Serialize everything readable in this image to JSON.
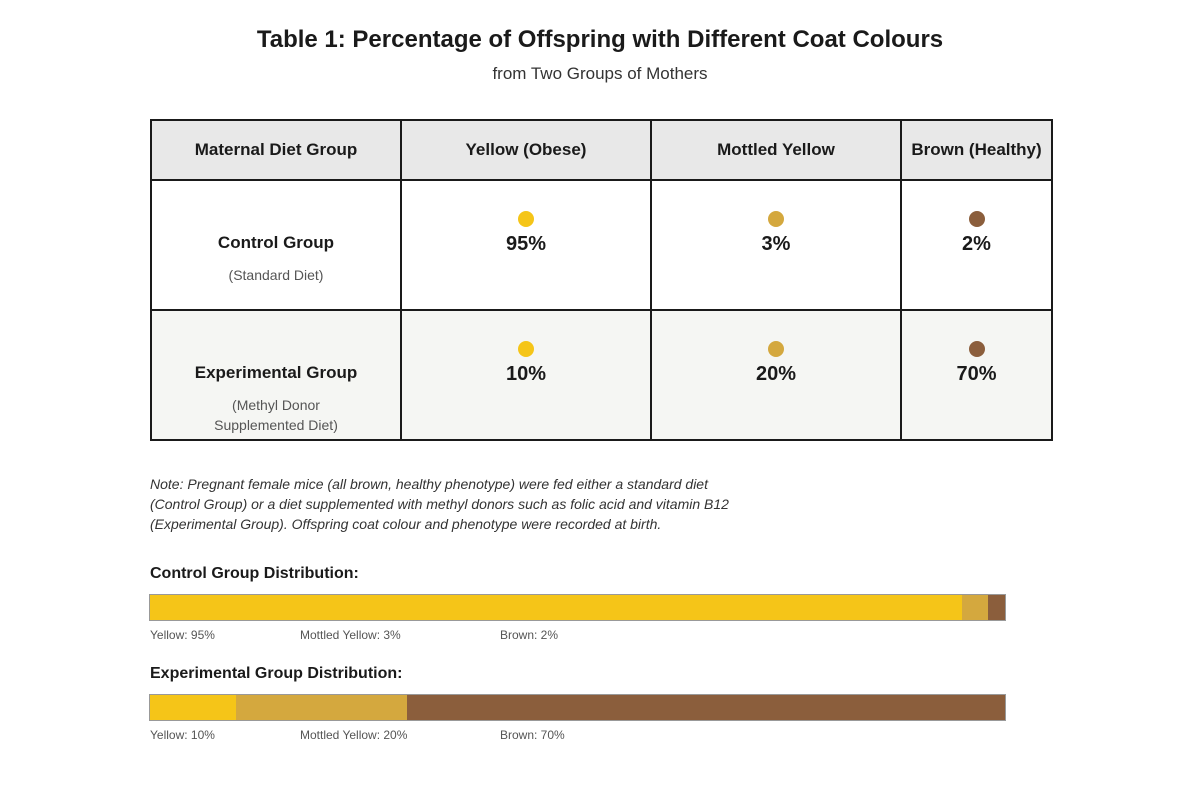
{
  "title": "Table 1: Percentage of Offspring with Different Coat Colours",
  "subtitle": "from Two Groups of Mothers",
  "colors": {
    "yellow": "#f5c518",
    "mottled": "#d4a83e",
    "brown": "#8b5e3c"
  },
  "table": {
    "headers": [
      "Maternal Diet Group",
      "Yellow (Obese)",
      "Mottled Yellow",
      "Brown (Healthy)"
    ],
    "rows": [
      {
        "group": "Control Group",
        "desc": "(Standard Diet)",
        "yellow": "95%",
        "mottled": "3%",
        "brown": "2%"
      },
      {
        "group": "Experimental Group",
        "desc": "(Methyl Donor Supplemented Diet)",
        "yellow": "10%",
        "mottled": "20%",
        "brown": "70%"
      }
    ]
  },
  "note": "Note: Pregnant female mice (all brown, healthy phenotype) were fed either a standard diet (Control Group) or a diet supplemented with methyl donors such as folic acid and vitamin B12 (Experimental Group). Offspring coat colour and phenotype were recorded at birth.",
  "distributions": [
    {
      "label": "Control Group Distribution:",
      "values": {
        "yellow": 95,
        "mottled": 3,
        "brown": 2
      },
      "legend": {
        "yellow": "Yellow: 95%",
        "mottled": "Mottled Yellow: 3%",
        "brown": "Brown: 2%"
      }
    },
    {
      "label": "Experimental Group Distribution:",
      "values": {
        "yellow": 10,
        "mottled": 20,
        "brown": 70
      },
      "legend": {
        "yellow": "Yellow: 10%",
        "mottled": "Mottled Yellow: 20%",
        "brown": "Brown: 70%"
      }
    }
  ]
}
